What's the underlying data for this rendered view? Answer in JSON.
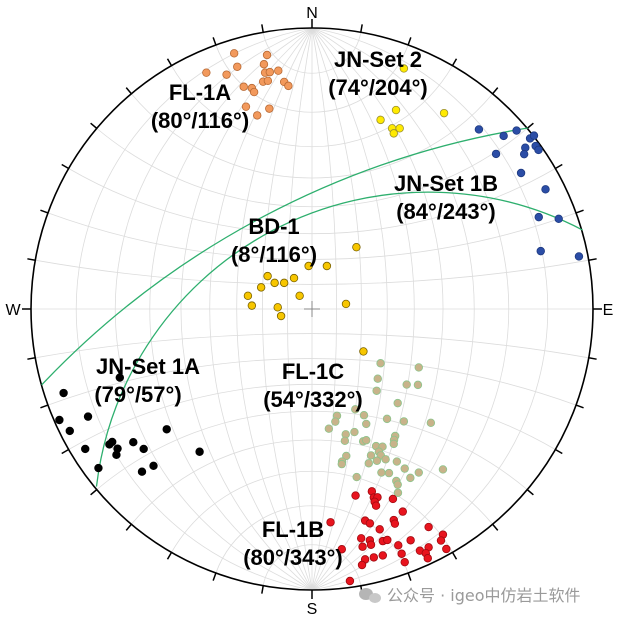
{
  "directions": {
    "north": "N",
    "east": "E",
    "south": "S",
    "west": "W"
  },
  "watermark": "公众号 · igeo中仿岩土软件",
  "chart_data": {
    "type": "scatter",
    "projection": "stereonet (lower hemisphere), coordinates in net units (-1..1), north = +y",
    "grid": true,
    "tick_interval_deg": 10,
    "groups": [
      {
        "name": "FL-1A",
        "attitude": "(80°/116°)",
        "color": "#F2995C",
        "stroke": "#B86A35",
        "points": [
          [
            -0.277,
            0.91
          ],
          [
            -0.16,
            0.904
          ],
          [
            -0.266,
            0.862
          ],
          [
            -0.171,
            0.871
          ],
          [
            -0.376,
            0.841
          ],
          [
            -0.304,
            0.834
          ],
          [
            -0.167,
            0.841
          ],
          [
            -0.15,
            0.843
          ],
          [
            -0.12,
            0.848
          ],
          [
            -0.174,
            0.809
          ],
          [
            -0.157,
            0.812
          ],
          [
            -0.099,
            0.808
          ],
          [
            -0.084,
            0.794
          ],
          [
            -0.243,
            0.791
          ],
          [
            -0.214,
            0.786
          ],
          [
            -0.206,
            0.772
          ],
          [
            -0.235,
            0.72
          ],
          [
            -0.152,
            0.713
          ],
          [
            -0.195,
            0.689
          ]
        ]
      },
      {
        "name": "JN-Set 2",
        "attitude": "(74°/204°)",
        "color": "#FFEA00",
        "stroke": "#9A8F30",
        "points": [
          [
            0.327,
            0.856
          ],
          [
            0.299,
            0.708
          ],
          [
            0.47,
            0.697
          ],
          [
            0.244,
            0.673
          ],
          [
            0.285,
            0.643
          ],
          [
            0.312,
            0.643
          ],
          [
            0.291,
            0.625
          ]
        ]
      },
      {
        "name": "JN-Set 1B",
        "attitude": "(84°/243°)",
        "color": "#2B4DA6",
        "stroke": "#1E3A80",
        "points": [
          [
            0.594,
            0.639
          ],
          [
            0.682,
            0.616
          ],
          [
            0.728,
            0.635
          ],
          [
            0.776,
            0.607
          ],
          [
            0.79,
            0.617
          ],
          [
            0.759,
            0.574
          ],
          [
            0.796,
            0.58
          ],
          [
            0.806,
            0.566
          ],
          [
            0.655,
            0.552
          ],
          [
            0.755,
            0.551
          ],
          [
            0.744,
            0.484
          ],
          [
            0.831,
            0.426
          ],
          [
            0.807,
            0.327
          ],
          [
            0.878,
            0.321
          ],
          [
            0.814,
            0.206
          ],
          [
            0.95,
            0.187
          ]
        ]
      },
      {
        "name": "BD-1",
        "attitude": "(8°/116°)",
        "color": "#F7C600",
        "stroke": "#7A6200",
        "points": [
          [
            0.158,
            0.22
          ],
          [
            -0.012,
            0.153
          ],
          [
            0.053,
            0.153
          ],
          [
            -0.158,
            0.117
          ],
          [
            -0.064,
            0.11
          ],
          [
            -0.133,
            0.093
          ],
          [
            -0.099,
            0.093
          ],
          [
            -0.181,
            0.077
          ],
          [
            -0.044,
            0.047
          ],
          [
            -0.228,
            0.047
          ],
          [
            0.121,
            0.018
          ],
          [
            -0.214,
            0.012
          ],
          [
            -0.122,
            0.006
          ],
          [
            -0.11,
            -0.025
          ],
          [
            0.183,
            -0.151
          ]
        ]
      },
      {
        "name": "JN-Set 1A",
        "attitude": "(79°/57°)",
        "color": "#000000",
        "stroke": "#000000",
        "points": [
          [
            -0.684,
            -0.244
          ],
          [
            -0.884,
            -0.299
          ],
          [
            -0.797,
            -0.383
          ],
          [
            -0.899,
            -0.395
          ],
          [
            -0.862,
            -0.434
          ],
          [
            -0.517,
            -0.428
          ],
          [
            -0.711,
            -0.473
          ],
          [
            -0.721,
            -0.482
          ],
          [
            -0.636,
            -0.474
          ],
          [
            -0.692,
            -0.497
          ],
          [
            -0.599,
            -0.498
          ],
          [
            -0.807,
            -0.498
          ],
          [
            -0.4,
            -0.508
          ],
          [
            -0.696,
            -0.519
          ],
          [
            -0.564,
            -0.558
          ],
          [
            -0.76,
            -0.566
          ],
          [
            -0.605,
            -0.579
          ]
        ]
      },
      {
        "name": "FL-1C",
        "attitude": "(54°/332°)",
        "color": "#C8B38A",
        "stroke": "#8CC48C",
        "points": [
          [
            0.244,
            -0.193
          ],
          [
            0.38,
            -0.208
          ],
          [
            0.234,
            -0.248
          ],
          [
            0.337,
            -0.269
          ],
          [
            0.377,
            -0.27
          ],
          [
            0.23,
            -0.291
          ],
          [
            0.305,
            -0.335
          ],
          [
            0.154,
            -0.357
          ],
          [
            0.185,
            -0.378
          ],
          [
            0.089,
            -0.38
          ],
          [
            0.267,
            -0.391
          ],
          [
            0.327,
            -0.4
          ],
          [
            0.423,
            -0.405
          ],
          [
            0.083,
            -0.401
          ],
          [
            0.193,
            -0.409
          ],
          [
            0.06,
            -0.426
          ],
          [
            0.151,
            -0.438
          ],
          [
            0.12,
            -0.446
          ],
          [
            0.296,
            -0.452
          ],
          [
            0.117,
            -0.469
          ],
          [
            0.182,
            -0.471
          ],
          [
            0.193,
            -0.467
          ],
          [
            0.292,
            -0.466
          ],
          [
            0.291,
            -0.48
          ],
          [
            0.228,
            -0.488
          ],
          [
            0.251,
            -0.49
          ],
          [
            0.238,
            -0.508
          ],
          [
            0.122,
            -0.523
          ],
          [
            0.21,
            -0.521
          ],
          [
            0.245,
            -0.521
          ],
          [
            0.107,
            -0.543
          ],
          [
            0.106,
            -0.552
          ],
          [
            0.202,
            -0.549
          ],
          [
            0.262,
            -0.535
          ],
          [
            0.302,
            -0.543
          ],
          [
            0.231,
            -0.54
          ],
          [
            0.33,
            -0.568
          ],
          [
            0.466,
            -0.571
          ],
          [
            0.247,
            -0.582
          ],
          [
            0.274,
            -0.584
          ],
          [
            0.38,
            -0.582
          ],
          [
            0.159,
            -0.598
          ],
          [
            0.35,
            -0.601
          ],
          [
            0.3,
            -0.612
          ],
          [
            0.305,
            -0.625
          ],
          [
            0.306,
            -0.654
          ]
        ]
      },
      {
        "name": "FL-1B",
        "attitude": "(80°/343°)",
        "color": "#E8141E",
        "stroke": "#A00A10",
        "points": [
          [
            0.213,
            -0.649
          ],
          [
            0.155,
            -0.664
          ],
          [
            0.22,
            -0.671
          ],
          [
            0.233,
            -0.67
          ],
          [
            0.223,
            -0.686
          ],
          [
            0.228,
            -0.7
          ],
          [
            0.288,
            -0.676
          ],
          [
            0.323,
            -0.721
          ],
          [
            0.066,
            -0.759
          ],
          [
            0.189,
            -0.753
          ],
          [
            0.206,
            -0.763
          ],
          [
            0.291,
            -0.751
          ],
          [
            0.295,
            -0.764
          ],
          [
            0.241,
            -0.784
          ],
          [
            0.415,
            -0.776
          ],
          [
            0.175,
            -0.816
          ],
          [
            0.206,
            -0.823
          ],
          [
            0.252,
            -0.826
          ],
          [
            0.268,
            -0.822
          ],
          [
            0.351,
            -0.823
          ],
          [
            0.466,
            -0.803
          ],
          [
            0.459,
            -0.824
          ],
          [
            0.21,
            -0.839
          ],
          [
            0.18,
            -0.846
          ],
          [
            0.307,
            -0.841
          ],
          [
            0.106,
            -0.855
          ],
          [
            0.384,
            -0.86
          ],
          [
            0.415,
            -0.848
          ],
          [
            0.319,
            -0.871
          ],
          [
            0.405,
            -0.869
          ],
          [
            0.478,
            -0.854
          ],
          [
            0.189,
            -0.891
          ],
          [
            0.22,
            -0.884
          ],
          [
            0.252,
            -0.877
          ],
          [
            0.412,
            -0.887
          ],
          [
            0.178,
            -0.911
          ],
          [
            0.33,
            -0.901
          ],
          [
            0.135,
            -0.968
          ]
        ]
      }
    ],
    "great_circles": [
      {
        "name": "great-circle-1",
        "color": "#2EAF6E",
        "points": [
          [
            0.768,
            0.644
          ],
          [
            -0.15,
            0.341
          ],
          [
            -0.962,
            -0.27
          ]
        ]
      },
      {
        "name": "great-circle-2",
        "color": "#2EAF6E",
        "points": [
          [
            0.963,
            0.281
          ],
          [
            0.316,
            0.412
          ],
          [
            -0.767,
            -0.632
          ]
        ]
      }
    ]
  }
}
